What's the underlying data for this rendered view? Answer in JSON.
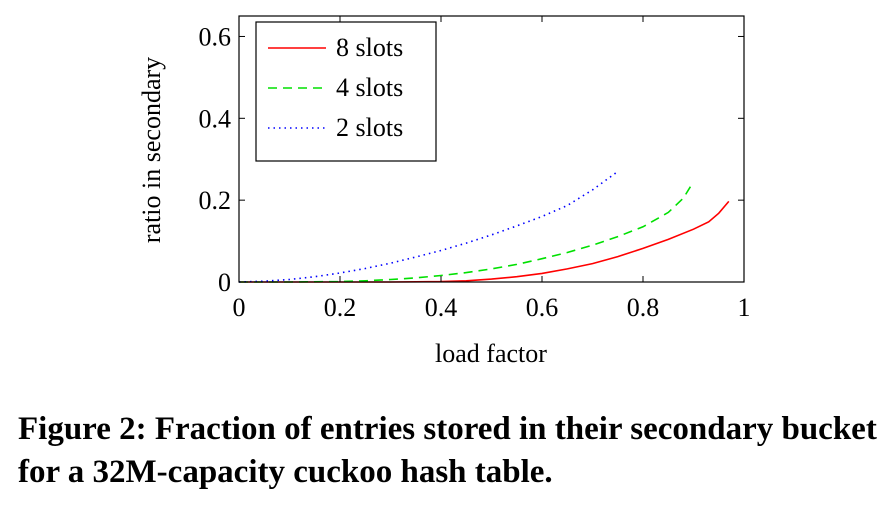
{
  "chart_data": {
    "type": "line",
    "xlabel": "load factor",
    "ylabel": "ratio in secondary",
    "xlim": [
      0,
      1
    ],
    "ylim": [
      0,
      0.65
    ],
    "xticks": [
      0,
      0.2,
      0.4,
      0.6,
      0.8,
      1
    ],
    "xtick_labels": [
      "0",
      "0.2",
      "0.4",
      "0.6",
      "0.8",
      "1"
    ],
    "yticks": [
      0,
      0.2,
      0.4,
      0.6
    ],
    "ytick_labels": [
      "0",
      "0.2",
      "0.4",
      "0.6"
    ],
    "grid": false,
    "legend_position": "top-left",
    "series": [
      {
        "name": "8 slots",
        "color": "#ff0000",
        "dash": "solid",
        "x": [
          0,
          0.1,
          0.2,
          0.3,
          0.4,
          0.45,
          0.5,
          0.55,
          0.6,
          0.65,
          0.7,
          0.75,
          0.8,
          0.85,
          0.9,
          0.93,
          0.95,
          0.97
        ],
        "y": [
          0,
          0,
          0,
          0,
          0.001,
          0.003,
          0.007,
          0.013,
          0.021,
          0.032,
          0.045,
          0.062,
          0.082,
          0.104,
          0.129,
          0.147,
          0.168,
          0.197
        ]
      },
      {
        "name": "4 slots",
        "color": "#00e000",
        "dash": "dashed",
        "x": [
          0,
          0.1,
          0.2,
          0.25,
          0.3,
          0.35,
          0.4,
          0.45,
          0.5,
          0.55,
          0.6,
          0.65,
          0.7,
          0.75,
          0.8,
          0.85,
          0.88,
          0.9
        ],
        "y": [
          0,
          0,
          0.001,
          0.003,
          0.006,
          0.01,
          0.016,
          0.023,
          0.032,
          0.043,
          0.057,
          0.072,
          0.09,
          0.111,
          0.135,
          0.17,
          0.205,
          0.245
        ]
      },
      {
        "name": "2 slots",
        "color": "#0000ff",
        "dash": "dotted",
        "x": [
          0,
          0.05,
          0.1,
          0.15,
          0.2,
          0.25,
          0.3,
          0.35,
          0.4,
          0.45,
          0.5,
          0.55,
          0.6,
          0.65,
          0.7,
          0.75
        ],
        "y": [
          0,
          0.002,
          0.006,
          0.013,
          0.022,
          0.033,
          0.046,
          0.061,
          0.077,
          0.095,
          0.115,
          0.137,
          0.16,
          0.187,
          0.225,
          0.27
        ]
      }
    ]
  },
  "caption": "Figure 2: Fraction of entries stored in their secondary bucket for a 32M-capacity cuckoo hash table."
}
